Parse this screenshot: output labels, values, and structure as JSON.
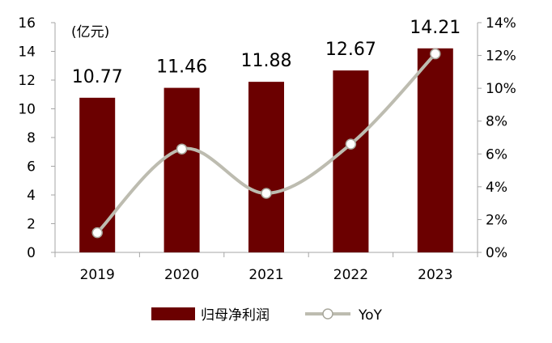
{
  "chart_data": {
    "type": "bar",
    "categories": [
      "2019",
      "2020",
      "2021",
      "2022",
      "2023"
    ],
    "series": [
      {
        "name": "归母净利润",
        "type": "bar",
        "axis": "left",
        "values": [
          10.77,
          11.46,
          11.88,
          12.67,
          14.21
        ],
        "color": "#6b0000"
      },
      {
        "name": "YoY",
        "type": "line",
        "axis": "right",
        "smooth": true,
        "values": [
          1.2,
          6.3,
          3.6,
          6.6,
          12.1
        ],
        "color": "#bdbcb0"
      }
    ],
    "data_labels": [
      "10.77",
      "11.46",
      "11.88",
      "12.67",
      "14.21"
    ],
    "unit_label": "(亿元)",
    "y_left": {
      "ylim": [
        0,
        16
      ],
      "ticks": [
        "0",
        "2",
        "4",
        "6",
        "8",
        "10",
        "12",
        "14",
        "16"
      ]
    },
    "y_right": {
      "ylim": [
        0,
        14
      ],
      "ticks": [
        "0%",
        "2%",
        "4%",
        "6%",
        "8%",
        "10%",
        "12%",
        "14%"
      ]
    },
    "grid": false,
    "legend_position": "bottom"
  }
}
